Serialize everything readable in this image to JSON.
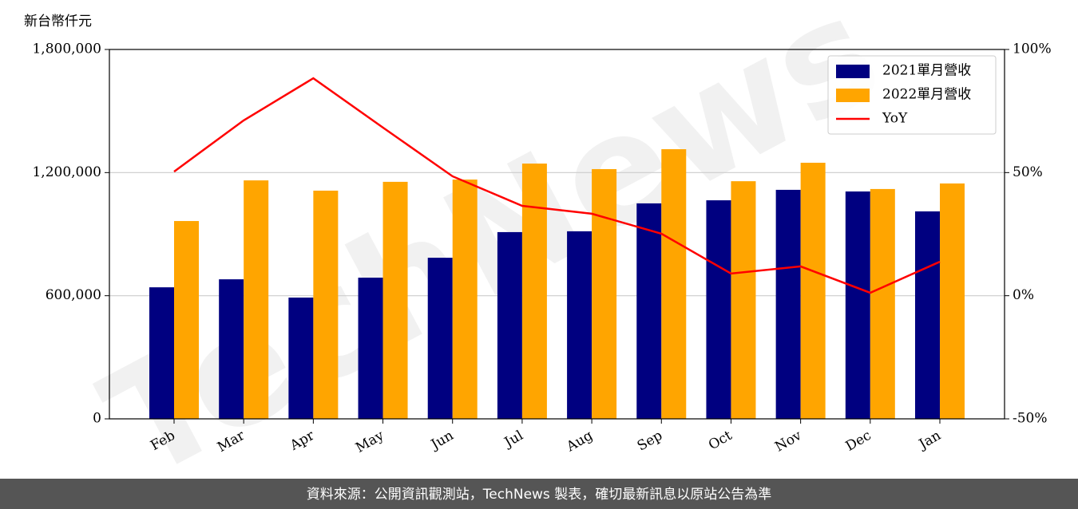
{
  "chart_data": {
    "type": "bar",
    "ylabel": "新台幣仟元",
    "watermark": "TechNews",
    "footer": "資料來源：公開資訊觀測站，TechNews 製表，確切最新訊息以原站公告為準",
    "categories": [
      "Feb",
      "Mar",
      "Apr",
      "May",
      "Jun",
      "Jul",
      "Aug",
      "Sep",
      "Oct",
      "Nov",
      "Dec",
      "Jan"
    ],
    "series": [
      {
        "name": "2021單月營收",
        "color": "#000080",
        "values": [
          641000,
          680000,
          591000,
          688000,
          785000,
          910000,
          914000,
          1050000,
          1065000,
          1116000,
          1108000,
          1011000
        ]
      },
      {
        "name": "2022單月營收",
        "color": "#ffa500",
        "values": [
          964000,
          1162000,
          1112000,
          1155000,
          1166000,
          1244000,
          1217000,
          1314000,
          1158000,
          1248000,
          1120000,
          1147000
        ]
      },
      {
        "name": "YoY",
        "color": "#ff0000",
        "type": "line",
        "axis": "y2",
        "values": [
          50.4,
          71.2,
          88.3,
          68.3,
          48.5,
          36.5,
          33.3,
          25.2,
          9.0,
          11.9,
          1.2,
          13.8
        ]
      }
    ],
    "ylim": [
      0,
      1800000
    ],
    "yticks": [
      0,
      {
        "value": 600000,
        "label": "600,000"
      },
      {
        "value": 1200000,
        "label": "1,200,000"
      },
      {
        "value": 1800000,
        "label": "1,800,000"
      }
    ],
    "y2lim": [
      -50,
      100
    ],
    "y2ticks": [
      {
        "value": -50,
        "label": "-50%"
      },
      {
        "value": 0,
        "label": "0%"
      },
      {
        "value": 50,
        "label": "50%"
      },
      {
        "value": 100,
        "label": "100%"
      }
    ],
    "grid": true,
    "legend": "upper right"
  }
}
